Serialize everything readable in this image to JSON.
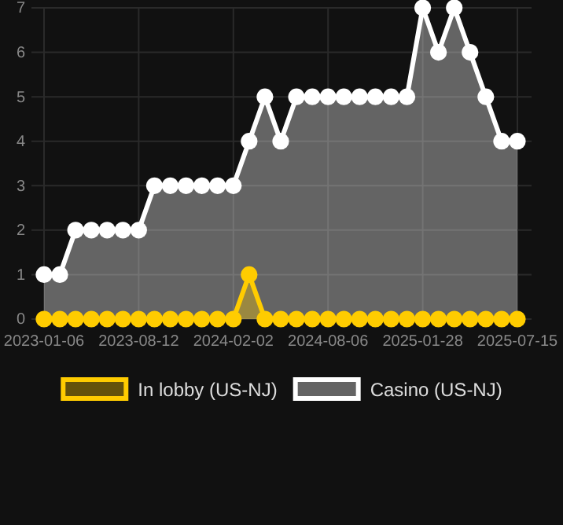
{
  "chart_data": {
    "type": "area",
    "categories": [
      "2023-01-06",
      null,
      null,
      null,
      null,
      null,
      "2023-08-12",
      null,
      null,
      null,
      null,
      null,
      "2024-02-02",
      null,
      null,
      null,
      null,
      null,
      "2024-08-06",
      null,
      null,
      null,
      null,
      null,
      "2025-01-28",
      null,
      null,
      null,
      null,
      null,
      "2025-07-15"
    ],
    "series": [
      {
        "name": "In lobby (US-NJ)",
        "color": "#ffcc00",
        "values": [
          0,
          0,
          0,
          0,
          0,
          0,
          0,
          0,
          0,
          0,
          0,
          0,
          0,
          1,
          0,
          0,
          0,
          0,
          0,
          0,
          0,
          0,
          0,
          0,
          0,
          0,
          0,
          0,
          0,
          0,
          0
        ]
      },
      {
        "name": "Casino (US-NJ)",
        "color": "#ffffff",
        "values": [
          1,
          1,
          2,
          2,
          2,
          2,
          2,
          3,
          3,
          3,
          3,
          3,
          3,
          4,
          5,
          4,
          5,
          5,
          5,
          5,
          5,
          5,
          5,
          5,
          7,
          6,
          7,
          6,
          5,
          4,
          4
        ]
      }
    ],
    "ylim": [
      0,
      7
    ],
    "yticks": [
      0,
      1,
      2,
      3,
      4,
      5,
      6,
      7
    ],
    "grid": true,
    "legend": "bottom",
    "marker": "circle"
  }
}
